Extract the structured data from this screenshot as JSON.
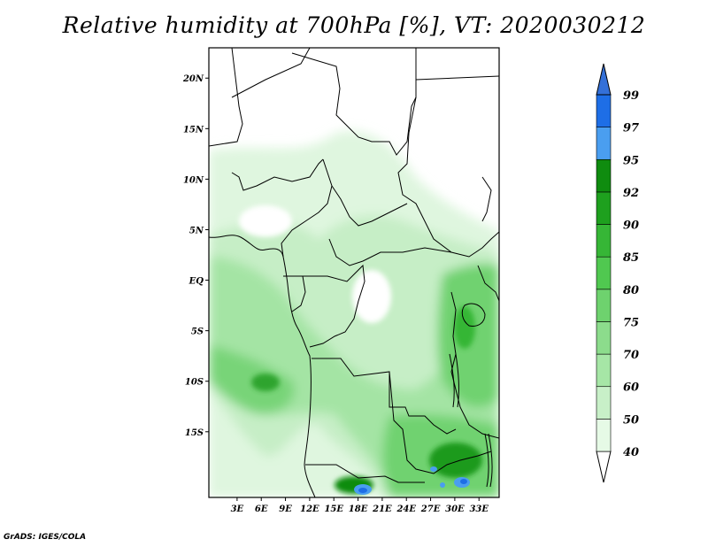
{
  "title": "Relative humidity at 700hPa [%], VT: 2020030212",
  "credit": "GrADS: IGES/COLA",
  "map": {
    "lon_range": [
      -0.5,
      35.5
    ],
    "lat_range": [
      -21.5,
      23
    ]
  },
  "lat_ticks": [
    {
      "value": 20,
      "label": "20N"
    },
    {
      "value": 15,
      "label": "15N"
    },
    {
      "value": 10,
      "label": "10N"
    },
    {
      "value": 5,
      "label": "5N"
    },
    {
      "value": 0,
      "label": "EQ"
    },
    {
      "value": -5,
      "label": "5S"
    },
    {
      "value": -10,
      "label": "10S"
    },
    {
      "value": -15,
      "label": "15S"
    }
  ],
  "lon_ticks": [
    {
      "value": 3,
      "label": "3E"
    },
    {
      "value": 6,
      "label": "6E"
    },
    {
      "value": 9,
      "label": "9E"
    },
    {
      "value": 12,
      "label": "12E"
    },
    {
      "value": 15,
      "label": "15E"
    },
    {
      "value": 18,
      "label": "18E"
    },
    {
      "value": 21,
      "label": "21E"
    },
    {
      "value": 24,
      "label": "24E"
    },
    {
      "value": 27,
      "label": "27E"
    },
    {
      "value": 30,
      "label": "30E"
    },
    {
      "value": 33,
      "label": "33E"
    }
  ],
  "colorbar": {
    "levels": [
      "40",
      "50",
      "60",
      "70",
      "75",
      "80",
      "85",
      "90",
      "92",
      "95",
      "97",
      "99"
    ],
    "colors": [
      "#ffffff",
      "#e6fae6",
      "#c8f0c8",
      "#a6e6a6",
      "#8cdc8c",
      "#6ed26e",
      "#50c850",
      "#36b636",
      "#1ea01e",
      "#0f8c0f",
      "#4a9ef0",
      "#1e6ee6",
      "#3470d8"
    ]
  }
}
